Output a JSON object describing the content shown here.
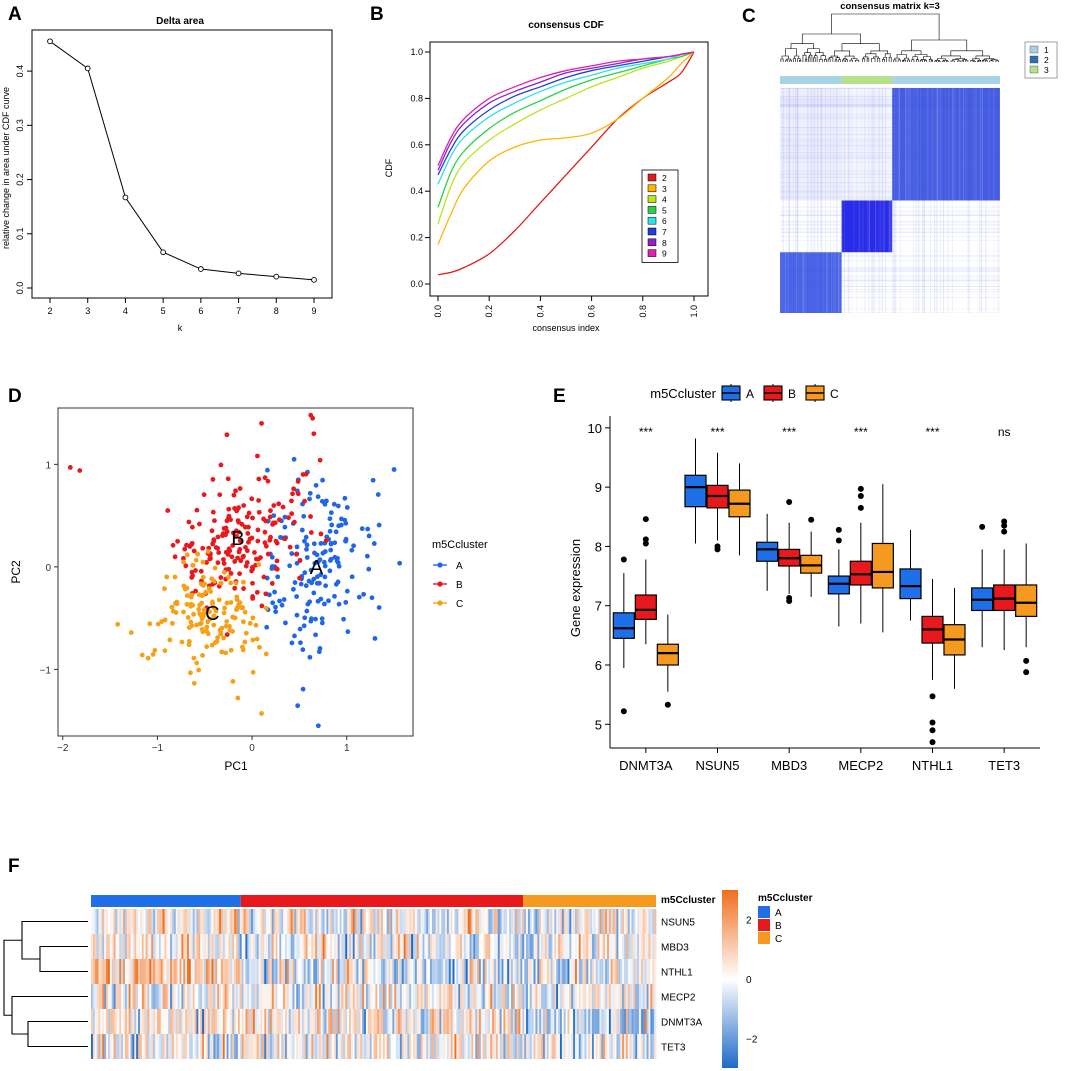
{
  "panels": {
    "A": {
      "label": "A",
      "chart_data": {
        "type": "line",
        "title": "Delta area",
        "xlabel": "k",
        "ylabel": "relative change in area under CDF curve",
        "x": [
          2,
          3,
          4,
          5,
          6,
          7,
          8,
          9
        ],
        "y": [
          0.455,
          0.405,
          0.167,
          0.066,
          0.035,
          0.027,
          0.021,
          0.015
        ],
        "xlim": [
          2,
          9
        ],
        "ylim": [
          0,
          0.45
        ],
        "xticks": [
          "2",
          "3",
          "4",
          "5",
          "6",
          "7",
          "8",
          "9"
        ],
        "yticks": [
          "0.0",
          "0.1",
          "0.2",
          "0.3",
          "0.4"
        ]
      }
    },
    "B": {
      "label": "B",
      "chart_data": {
        "type": "line",
        "title": "consensus CDF",
        "xlabel": "consensus index",
        "ylabel": "CDF",
        "xlim": [
          0,
          1
        ],
        "ylim": [
          0,
          1
        ],
        "xticks": [
          "0.0",
          "0.2",
          "0.4",
          "0.6",
          "0.8",
          "1.0"
        ],
        "yticks": [
          "0.0",
          "0.2",
          "0.4",
          "0.6",
          "0.8",
          "1.0"
        ],
        "x": [
          0,
          0.05,
          0.1,
          0.2,
          0.3,
          0.4,
          0.5,
          0.6,
          0.7,
          0.8,
          0.9,
          0.95,
          1.0
        ],
        "series": [
          {
            "name": "2",
            "color": "#e41a1c",
            "values": [
              0.04,
              0.05,
              0.07,
              0.13,
              0.23,
              0.35,
              0.47,
              0.59,
              0.71,
              0.8,
              0.87,
              0.91,
              1.0
            ]
          },
          {
            "name": "3",
            "color": "#ffb400",
            "values": [
              0.17,
              0.3,
              0.41,
              0.53,
              0.59,
              0.62,
              0.63,
              0.65,
              0.71,
              0.8,
              0.89,
              0.95,
              1.0
            ]
          },
          {
            "name": "4",
            "color": "#b8e61c",
            "values": [
              0.26,
              0.42,
              0.52,
              0.62,
              0.69,
              0.75,
              0.8,
              0.85,
              0.89,
              0.93,
              0.96,
              0.98,
              1.0
            ]
          },
          {
            "name": "5",
            "color": "#2ad24a",
            "values": [
              0.33,
              0.48,
              0.57,
              0.67,
              0.74,
              0.79,
              0.84,
              0.88,
              0.91,
              0.94,
              0.97,
              0.98,
              1.0
            ]
          },
          {
            "name": "6",
            "color": "#33e0e0",
            "values": [
              0.43,
              0.55,
              0.63,
              0.72,
              0.78,
              0.83,
              0.87,
              0.9,
              0.93,
              0.95,
              0.97,
              0.99,
              1.0
            ]
          },
          {
            "name": "7",
            "color": "#2040dc",
            "values": [
              0.47,
              0.58,
              0.66,
              0.75,
              0.81,
              0.85,
              0.89,
              0.92,
              0.94,
              0.96,
              0.98,
              0.99,
              1.0
            ]
          },
          {
            "name": "8",
            "color": "#9020c8",
            "values": [
              0.49,
              0.61,
              0.69,
              0.78,
              0.83,
              0.87,
              0.91,
              0.93,
              0.95,
              0.97,
              0.98,
              0.99,
              1.0
            ]
          },
          {
            "name": "9",
            "color": "#e020b0",
            "values": [
              0.51,
              0.63,
              0.71,
              0.8,
              0.85,
              0.89,
              0.92,
              0.94,
              0.96,
              0.97,
              0.98,
              0.99,
              1.0
            ]
          }
        ],
        "legend": [
          "2",
          "3",
          "4",
          "5",
          "6",
          "7",
          "8",
          "9"
        ]
      }
    },
    "C": {
      "label": "C",
      "chart_data": {
        "type": "heatmap",
        "title": "consensus matrix k=3",
        "legend": [
          {
            "label": "1",
            "color": "#a6d3e6"
          },
          {
            "label": "2",
            "color": "#2c6fb4"
          },
          {
            "label": "3",
            "color": "#b6e08a"
          }
        ],
        "cluster_bar": [
          {
            "cluster": "1",
            "fraction": 0.28
          },
          {
            "cluster": "3",
            "fraction": 0.23
          },
          {
            "cluster": "1",
            "fraction": 0.49
          }
        ],
        "blocks": [
          {
            "name": "cluster-a",
            "fraction": 0.5,
            "color": "#1e3adc"
          },
          {
            "name": "cluster-b",
            "fraction": 0.23,
            "color": "#1e22e8"
          },
          {
            "name": "cluster-c",
            "fraction": 0.27,
            "color": "#2a4ae0"
          }
        ]
      }
    },
    "D": {
      "label": "D",
      "chart_data": {
        "type": "scatter",
        "xlabel": "PC1",
        "ylabel": "PC2",
        "xlim": [
          -2.05,
          1.7
        ],
        "ylim": [
          -1.65,
          1.55
        ],
        "xticks": [
          "−2",
          "−1",
          "0",
          "1"
        ],
        "yticks": [
          "−1",
          "0",
          "1"
        ],
        "legend_title": "m5Ccluster",
        "series": [
          {
            "name": "A",
            "color": "#2266e8",
            "center": [
              0.7,
              0.0
            ],
            "spread": [
              0.32,
              0.42
            ],
            "count": 170
          },
          {
            "name": "B",
            "color": "#e8191c",
            "center": [
              -0.1,
              0.3
            ],
            "spread": [
              0.35,
              0.32
            ],
            "count": 190
          },
          {
            "name": "C",
            "color": "#f5a016",
            "center": [
              -0.5,
              -0.45
            ],
            "spread": [
              0.3,
              0.28
            ],
            "count": 150
          }
        ],
        "group_labels": [
          "A",
          "B",
          "C"
        ],
        "outliers": [
          {
            "group": "B",
            "x": -1.92,
            "y": 0.97
          },
          {
            "group": "B",
            "x": -1.82,
            "y": 0.94
          },
          {
            "group": "B",
            "x": 0.62,
            "y": 1.48
          },
          {
            "group": "B",
            "x": 0.64,
            "y": 1.45
          },
          {
            "group": "B",
            "x": 0.1,
            "y": 1.4
          },
          {
            "group": "A",
            "x": 0.7,
            "y": -1.55
          },
          {
            "group": "A",
            "x": 1.5,
            "y": 0.95
          },
          {
            "group": "C",
            "x": -1.42,
            "y": -0.56
          },
          {
            "group": "C",
            "x": -0.15,
            "y": -1.28
          },
          {
            "group": "C",
            "x": 0.1,
            "y": -1.43
          }
        ]
      }
    },
    "E": {
      "label": "E",
      "chart_data": {
        "type": "box",
        "legend_title": "m5Ccluster",
        "ylabel": "Gene expression",
        "ylim": [
          4.6,
          10.2
        ],
        "yticks": [
          "5",
          "6",
          "7",
          "8",
          "9",
          "10"
        ],
        "categories": [
          "DNMT3A",
          "NSUN5",
          "MBD3",
          "MECP2",
          "NTHL1",
          "TET3"
        ],
        "significance": [
          "***",
          "***",
          "***",
          "***",
          "***",
          "ns"
        ],
        "series": [
          {
            "name": "A",
            "color": "#1e6fe8",
            "boxes": [
              {
                "q1": 6.45,
                "median": 6.62,
                "q3": 6.88,
                "lo": 5.95,
                "hi": 7.55,
                "out": [
                  5.22,
                  7.78
                ]
              },
              {
                "q1": 8.67,
                "median": 9.0,
                "q3": 9.2,
                "lo": 8.05,
                "hi": 9.82,
                "out": []
              },
              {
                "q1": 7.75,
                "median": 7.95,
                "q3": 8.07,
                "lo": 7.25,
                "hi": 8.55,
                "out": []
              },
              {
                "q1": 7.2,
                "median": 7.37,
                "q3": 7.5,
                "lo": 6.65,
                "hi": 7.95,
                "out": [
                  8.1,
                  8.28
                ]
              },
              {
                "q1": 7.12,
                "median": 7.33,
                "q3": 7.62,
                "lo": 6.75,
                "hi": 8.28,
                "out": []
              },
              {
                "q1": 6.92,
                "median": 7.1,
                "q3": 7.3,
                "lo": 6.3,
                "hi": 7.95,
                "out": [
                  8.33
                ]
              }
            ]
          },
          {
            "name": "B",
            "color": "#e8191c",
            "boxes": [
              {
                "q1": 6.77,
                "median": 6.93,
                "q3": 7.18,
                "lo": 6.35,
                "hi": 7.78,
                "out": [
                  8.05,
                  8.12,
                  8.46
                ]
              },
              {
                "q1": 8.65,
                "median": 8.85,
                "q3": 9.03,
                "lo": 8.1,
                "hi": 9.58,
                "out": [
                  7.95,
                  8.0
                ]
              },
              {
                "q1": 7.67,
                "median": 7.8,
                "q3": 7.95,
                "lo": 7.2,
                "hi": 8.4,
                "out": [
                  7.08,
                  7.13,
                  8.75
                ]
              },
              {
                "q1": 7.35,
                "median": 7.53,
                "q3": 7.75,
                "lo": 6.7,
                "hi": 8.4,
                "out": [
                  8.65,
                  8.85,
                  8.97
                ]
              },
              {
                "q1": 6.37,
                "median": 6.6,
                "q3": 6.82,
                "lo": 5.75,
                "hi": 7.45,
                "out": [
                  5.47,
                  5.03,
                  4.9,
                  4.7
                ]
              },
              {
                "q1": 6.92,
                "median": 7.12,
                "q3": 7.35,
                "lo": 6.25,
                "hi": 7.95,
                "out": [
                  8.25,
                  8.35,
                  8.42
                ]
              }
            ]
          },
          {
            "name": "C",
            "color": "#f59a1e",
            "boxes": [
              {
                "q1": 6.0,
                "median": 6.2,
                "q3": 6.35,
                "lo": 5.55,
                "hi": 6.85,
                "out": [
                  5.33
                ]
              },
              {
                "q1": 8.5,
                "median": 8.72,
                "q3": 8.95,
                "lo": 7.85,
                "hi": 9.4,
                "out": []
              },
              {
                "q1": 7.55,
                "median": 7.68,
                "q3": 7.85,
                "lo": 7.15,
                "hi": 8.25,
                "out": [
                  8.45
                ]
              },
              {
                "q1": 7.3,
                "median": 7.57,
                "q3": 8.05,
                "lo": 6.55,
                "hi": 9.05,
                "out": []
              },
              {
                "q1": 6.17,
                "median": 6.43,
                "q3": 6.68,
                "lo": 5.6,
                "hi": 7.3,
                "out": []
              },
              {
                "q1": 6.82,
                "median": 7.05,
                "q3": 7.35,
                "lo": 6.3,
                "hi": 8.05,
                "out": [
                  6.07,
                  5.88
                ]
              }
            ]
          }
        ]
      }
    },
    "F": {
      "label": "F",
      "chart_data": {
        "type": "heatmap",
        "annotation_title": "m5Ccluster",
        "rows": [
          "NSUN5",
          "MBD3",
          "NTHL1",
          "MECP2",
          "DNMT3A",
          "TET3"
        ],
        "groups": [
          {
            "name": "A",
            "color": "#1e6fe8",
            "fraction": 0.265
          },
          {
            "name": "B",
            "color": "#e8191c",
            "fraction": 0.5
          },
          {
            "name": "C",
            "color": "#f59a1e",
            "fraction": 0.235
          }
        ],
        "row_means": [
          [
            0.3,
            0.0,
            -0.1
          ],
          [
            0.3,
            -0.1,
            0.0
          ],
          [
            1.1,
            -0.4,
            -0.3
          ],
          [
            0.1,
            0.0,
            0.0
          ],
          [
            0.1,
            0.25,
            -0.9
          ],
          [
            0.0,
            0.1,
            -0.2
          ]
        ],
        "colorbar_ticks": [
          "2",
          "0",
          "−2"
        ],
        "colorbar_range": [
          -3,
          3
        ],
        "legend_title": "m5Ccluster",
        "legend": [
          "A",
          "B",
          "C"
        ]
      }
    }
  }
}
